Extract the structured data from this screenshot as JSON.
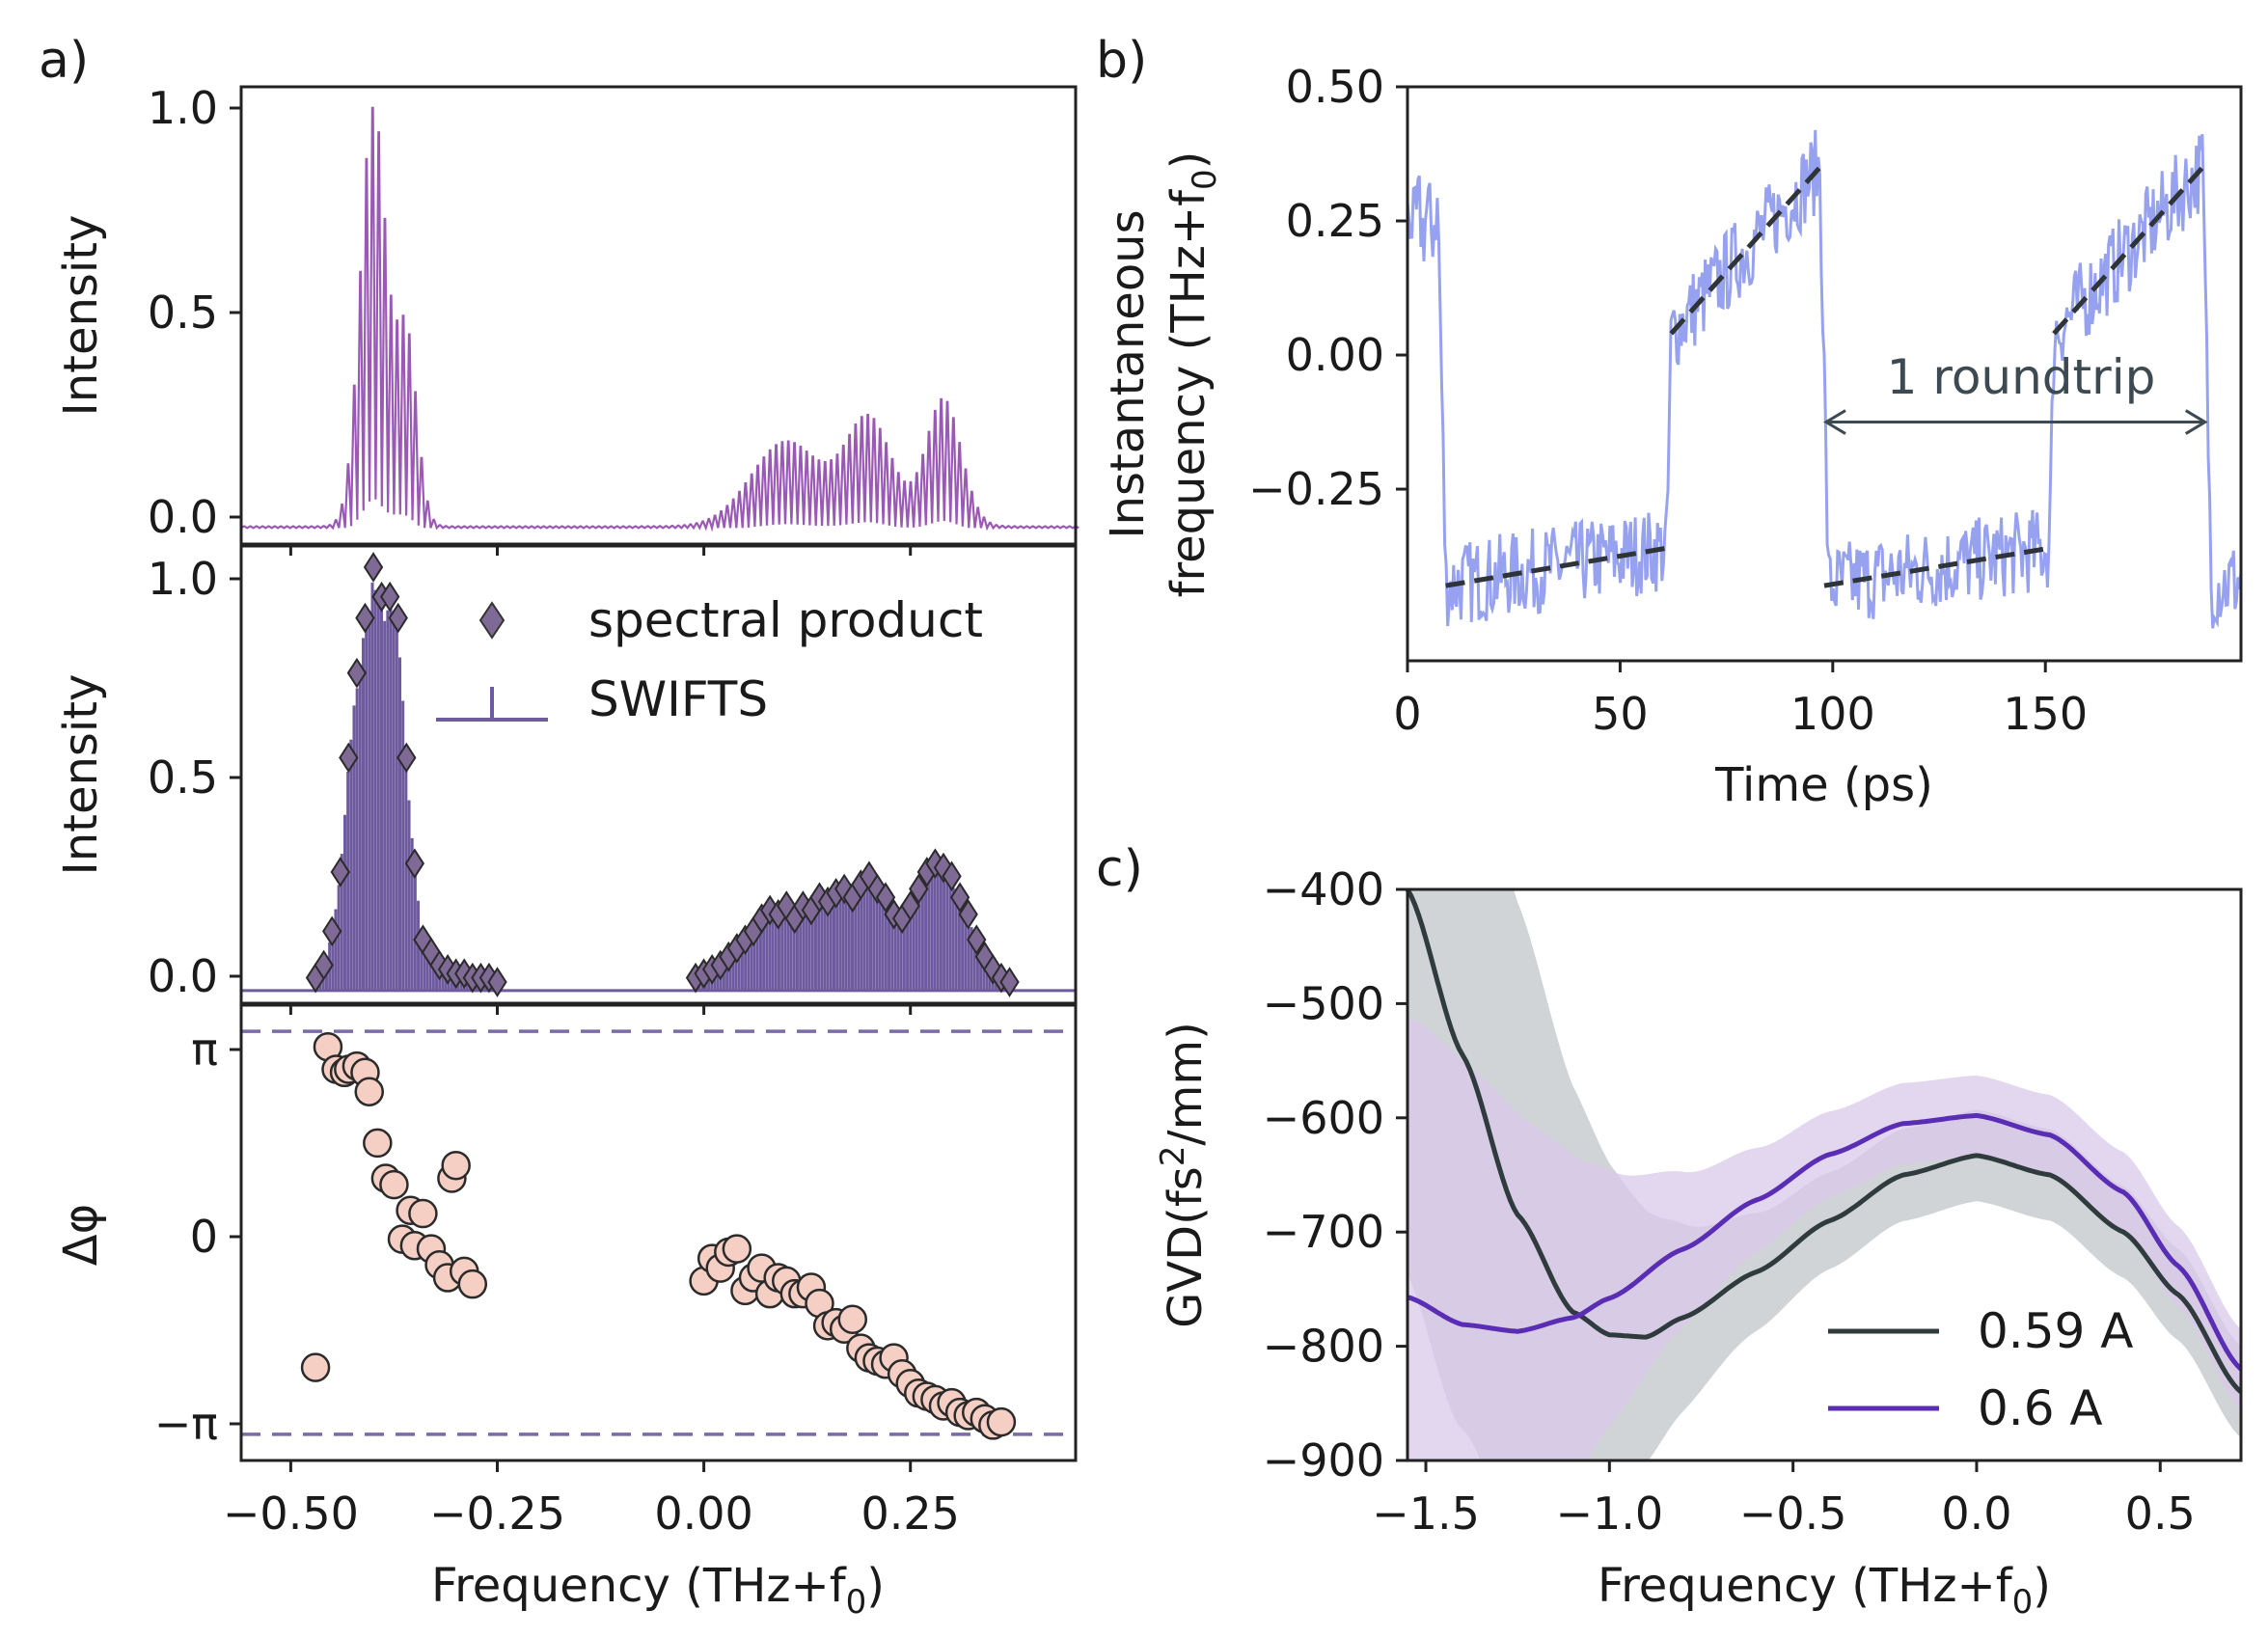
{
  "colors": {
    "spectrum": "#9b59b6",
    "swifts": "#6e5a9e",
    "diamond": "#7f6a96",
    "phase_point": "#f6cfc4",
    "inst_freq": "#96a2f0",
    "fit_dash": "#2f3438",
    "dashed_pi": "#7b6aa8",
    "gvd_059": "#2f3b3d",
    "gvd_059_band": "#c9ccd0",
    "gvd_060": "#5a2db5",
    "gvd_060_band": "#d9c8ea",
    "arrow": "#3d4a52"
  },
  "chart_data": [
    {
      "panel": "a) top",
      "panel_label": "a)",
      "type": "line",
      "ylabel": "Intensity",
      "xlim": [
        -0.56,
        0.45
      ],
      "ylim": [
        -0.03,
        1.05
      ],
      "yticks": [
        "0.0",
        "0.5",
        "1.0"
      ],
      "peaks": [
        {
          "center": -0.4,
          "width": 0.022,
          "height": 1.0
        },
        {
          "center": -0.36,
          "width": 0.018,
          "height": 0.45
        },
        {
          "center": 0.1,
          "width": 0.06,
          "height": 0.2
        },
        {
          "center": 0.2,
          "width": 0.04,
          "height": 0.25
        },
        {
          "center": 0.29,
          "width": 0.03,
          "height": 0.3
        }
      ],
      "comb_spacing_thz": 0.0074
    },
    {
      "panel": "a) middle",
      "type": "bar",
      "ylabel": "Intensity",
      "xlim": [
        -0.56,
        0.45
      ],
      "ylim": [
        -0.03,
        1.05
      ],
      "yticks": [
        "0.0",
        "0.5",
        "1.0"
      ],
      "legend": [
        "spectral product",
        "SWIFTS"
      ],
      "spectral_product": {
        "x": [
          -0.47,
          -0.46,
          -0.45,
          -0.44,
          -0.43,
          -0.42,
          -0.41,
          -0.4,
          -0.39,
          -0.38,
          -0.37,
          -0.36,
          -0.35,
          -0.34,
          -0.33,
          -0.32,
          -0.31,
          -0.3,
          -0.29,
          -0.28,
          -0.27,
          -0.26,
          -0.25,
          -0.01,
          0.0,
          0.01,
          0.02,
          0.03,
          0.04,
          0.05,
          0.06,
          0.07,
          0.08,
          0.09,
          0.1,
          0.11,
          0.12,
          0.13,
          0.14,
          0.15,
          0.16,
          0.17,
          0.18,
          0.19,
          0.2,
          0.21,
          0.22,
          0.23,
          0.24,
          0.25,
          0.26,
          0.27,
          0.28,
          0.29,
          0.3,
          0.31,
          0.32,
          0.33,
          0.34,
          0.35,
          0.36,
          0.37
        ],
        "y": [
          0.03,
          0.06,
          0.14,
          0.28,
          0.55,
          0.75,
          0.88,
          1.0,
          0.93,
          0.93,
          0.88,
          0.55,
          0.3,
          0.12,
          0.09,
          0.06,
          0.05,
          0.04,
          0.04,
          0.03,
          0.03,
          0.03,
          0.02,
          0.03,
          0.04,
          0.05,
          0.06,
          0.08,
          0.1,
          0.12,
          0.14,
          0.17,
          0.19,
          0.18,
          0.2,
          0.17,
          0.2,
          0.19,
          0.22,
          0.21,
          0.23,
          0.24,
          0.22,
          0.25,
          0.27,
          0.24,
          0.22,
          0.18,
          0.17,
          0.2,
          0.24,
          0.28,
          0.3,
          0.29,
          0.27,
          0.22,
          0.18,
          0.12,
          0.08,
          0.05,
          0.03,
          0.02
        ]
      }
    },
    {
      "panel": "a) bottom",
      "type": "scatter",
      "xlabel": "Frequency (THz+f",
      "xlabel_sub": "0",
      "xlabel_tail": ")",
      "ylabel": "Δφ",
      "xlim": [
        -0.56,
        0.45
      ],
      "ylim": [
        -3.55,
        3.55
      ],
      "yticks": [
        "−π",
        "0",
        "π"
      ],
      "xticks": [
        "−0.50",
        "−0.25",
        "0.00",
        "0.25"
      ],
      "xtick_values": [
        -0.5,
        -0.25,
        0.0,
        0.25
      ],
      "dashed_levels": [
        3.1416,
        -3.1416
      ],
      "phase_points": {
        "x": [
          -0.47,
          -0.455,
          -0.445,
          -0.435,
          -0.43,
          -0.42,
          -0.41,
          -0.405,
          -0.395,
          -0.385,
          -0.375,
          -0.365,
          -0.355,
          -0.35,
          -0.34,
          -0.33,
          -0.32,
          -0.31,
          -0.305,
          -0.3,
          -0.29,
          -0.28,
          0.0,
          0.01,
          0.02,
          0.03,
          0.04,
          0.05,
          0.06,
          0.07,
          0.08,
          0.09,
          0.1,
          0.11,
          0.12,
          0.13,
          0.14,
          0.15,
          0.16,
          0.17,
          0.18,
          0.19,
          0.2,
          0.21,
          0.22,
          0.23,
          0.24,
          0.25,
          0.26,
          0.27,
          0.28,
          0.29,
          0.3,
          0.31,
          0.32,
          0.33,
          0.34,
          0.35,
          0.36
        ],
        "y": [
          -2.1,
          2.9,
          2.55,
          2.5,
          2.55,
          2.6,
          2.5,
          2.2,
          1.4,
          0.85,
          0.75,
          -0.1,
          0.35,
          -0.2,
          0.3,
          -0.25,
          -0.5,
          -0.7,
          0.85,
          1.05,
          -0.6,
          -0.8,
          -0.75,
          -0.4,
          -0.55,
          -0.3,
          -0.25,
          -0.9,
          -0.7,
          -0.55,
          -0.95,
          -0.7,
          -0.75,
          -0.95,
          -0.95,
          -0.85,
          -1.1,
          -1.45,
          -1.4,
          -1.5,
          -1.35,
          -1.8,
          -1.95,
          -2.0,
          -2.05,
          -1.95,
          -2.2,
          -2.35,
          -2.5,
          -2.55,
          -2.6,
          -2.7,
          -2.65,
          -2.8,
          -2.85,
          -2.8,
          -2.9,
          -3.0,
          -2.95
        ]
      }
    },
    {
      "panel": "b)",
      "panel_label": "b)",
      "type": "line",
      "xlabel": "Time (ps)",
      "ylabel_line1": "Instantaneous",
      "ylabel_line2": "frequency (THz+f",
      "ylabel_sub": "0",
      "ylabel_tail": ")",
      "xlim": [
        0,
        196
      ],
      "ylim": [
        -0.57,
        0.5
      ],
      "xticks": [
        "0",
        "50",
        "100",
        "150"
      ],
      "xtick_values": [
        0,
        50,
        100,
        150
      ],
      "yticks": [
        "−0.25",
        "0.00",
        "0.25",
        "0.50"
      ],
      "ytick_values": [
        -0.25,
        0.0,
        0.25,
        0.5
      ],
      "annotation": "1 roundtrip",
      "roundtrip_ps": [
        98,
        188
      ],
      "fit_lines": [
        {
          "t": [
            9,
            61
          ],
          "f": [
            -0.43,
            -0.36
          ]
        },
        {
          "t": [
            62,
            97
          ],
          "f": [
            0.04,
            0.35
          ]
        },
        {
          "t": [
            98,
            151
          ],
          "f": [
            -0.43,
            -0.36
          ]
        },
        {
          "t": [
            152,
            187
          ],
          "f": [
            0.04,
            0.35
          ]
        }
      ]
    },
    {
      "panel": "c)",
      "panel_label": "c)",
      "type": "line",
      "xlabel": "Frequency (THz+f",
      "xlabel_sub": "0",
      "xlabel_tail": ")",
      "ylabel": "GVD(fs",
      "ylabel_sup": "2",
      "ylabel_tail": "/mm)",
      "xlim": [
        -1.55,
        0.72
      ],
      "ylim": [
        -900,
        -400
      ],
      "xticks": [
        "−1.5",
        "−1.0",
        "−0.5",
        "0.0",
        "0.5"
      ],
      "xtick_values": [
        -1.5,
        -1.0,
        -0.5,
        0.0,
        0.5
      ],
      "yticks": [
        "−900",
        "−800",
        "−700",
        "−600",
        "−500",
        "−400"
      ],
      "ytick_values": [
        -900,
        -800,
        -700,
        -600,
        -500,
        -400
      ],
      "series": [
        {
          "name": "0.59 A",
          "x": [
            -1.55,
            -1.4,
            -1.25,
            -1.1,
            -1.0,
            -0.9,
            -0.8,
            -0.6,
            -0.4,
            -0.2,
            0.0,
            0.2,
            0.4,
            0.55,
            0.72
          ],
          "y": [
            -400,
            -545,
            -685,
            -770,
            -790,
            -792,
            -775,
            -735,
            -690,
            -650,
            -633,
            -650,
            -700,
            -755,
            -840
          ]
        },
        {
          "name": "0.6 A",
          "x": [
            -1.55,
            -1.4,
            -1.25,
            -1.1,
            -1.0,
            -0.8,
            -0.6,
            -0.4,
            -0.2,
            0.0,
            0.2,
            0.4,
            0.55,
            0.72
          ],
          "y": [
            -757,
            -781,
            -787,
            -775,
            -758,
            -715,
            -672,
            -632,
            -605,
            -598,
            -615,
            -665,
            -730,
            -820
          ]
        }
      ]
    }
  ]
}
